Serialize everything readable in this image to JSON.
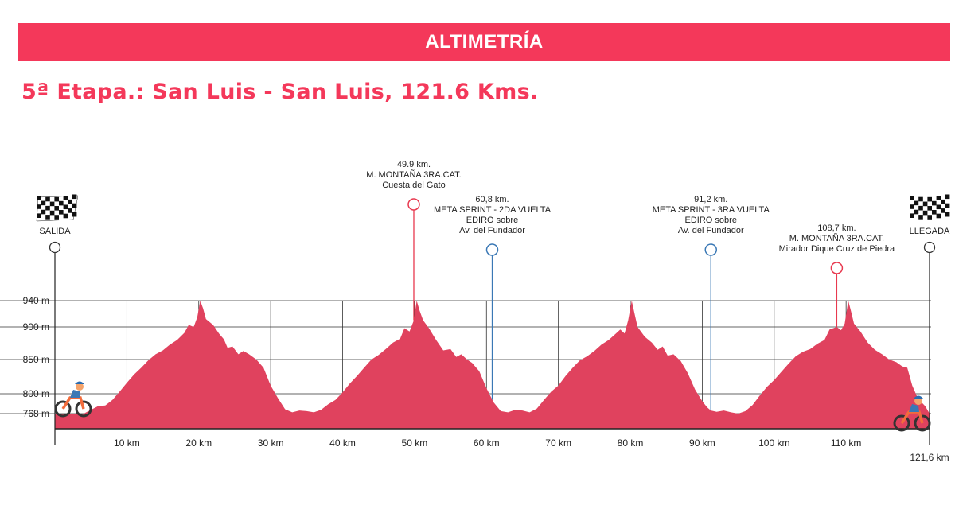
{
  "banner": {
    "title": "ALTIMETRÍA"
  },
  "stage": {
    "title": "5ª Etapa.: San Luis - San Luis, 121.6 Kms."
  },
  "colors": {
    "accent": "#f4385a",
    "profile_fill": "#e0425e",
    "mountain_marker": "#e8394f",
    "sprint_marker": "#3a78b5"
  },
  "start": {
    "label": "SALIDA",
    "icon": "checkered-flag-icon",
    "rider_icon": "cyclist-icon"
  },
  "finish": {
    "label": "LLEGADA",
    "icon": "checkered-flag-icon",
    "rider_icon": "cyclist-icon"
  },
  "chart_data": {
    "type": "area",
    "x_unit": "km",
    "y_unit": "m",
    "xlim": [
      0,
      121.6
    ],
    "ylim": [
      745,
      940
    ],
    "y_ticks": [
      {
        "value": 940,
        "label": "940 m"
      },
      {
        "value": 900,
        "label": "900 m"
      },
      {
        "value": 850,
        "label": "850 m"
      },
      {
        "value": 800,
        "label": "800 m"
      },
      {
        "value": 768,
        "label": "768 m"
      }
    ],
    "x_ticks": [
      {
        "value": 10,
        "label": "10 km"
      },
      {
        "value": 20,
        "label": "20 km"
      },
      {
        "value": 30,
        "label": "30 km"
      },
      {
        "value": 40,
        "label": "40 km"
      },
      {
        "value": 50,
        "label": "50 km"
      },
      {
        "value": 60,
        "label": "60 km"
      },
      {
        "value": 70,
        "label": "70 km"
      },
      {
        "value": 80,
        "label": "80 km"
      },
      {
        "value": 90,
        "label": "90 km"
      },
      {
        "value": 100,
        "label": "100 km"
      },
      {
        "value": 110,
        "label": "110 km"
      }
    ],
    "end_label": "121,6 km",
    "profile": [
      [
        0,
        768
      ],
      [
        2,
        768
      ],
      [
        4,
        768
      ],
      [
        6,
        780
      ],
      [
        7,
        781
      ],
      [
        8,
        790
      ],
      [
        9,
        803
      ],
      [
        10,
        816
      ],
      [
        11,
        828
      ],
      [
        12,
        838
      ],
      [
        13,
        849
      ],
      [
        14,
        858
      ],
      [
        15,
        864
      ],
      [
        16,
        873
      ],
      [
        17,
        880
      ],
      [
        18,
        891
      ],
      [
        18.6,
        903
      ],
      [
        19.3,
        900
      ],
      [
        19.8,
        915
      ],
      [
        20.2,
        940
      ],
      [
        20.6,
        928
      ],
      [
        21,
        912
      ],
      [
        22,
        903
      ],
      [
        22.8,
        890
      ],
      [
        23.5,
        881
      ],
      [
        24,
        868
      ],
      [
        24.7,
        870
      ],
      [
        25.5,
        858
      ],
      [
        26.2,
        863
      ],
      [
        27,
        858
      ],
      [
        28,
        850
      ],
      [
        29,
        838
      ],
      [
        30,
        812
      ],
      [
        31,
        793
      ],
      [
        32,
        775
      ],
      [
        33,
        770
      ],
      [
        34,
        773
      ],
      [
        35,
        772
      ],
      [
        36,
        770
      ],
      [
        37,
        774
      ],
      [
        38,
        783
      ],
      [
        39,
        790
      ],
      [
        40,
        802
      ],
      [
        41,
        815
      ],
      [
        42,
        826
      ],
      [
        43,
        838
      ],
      [
        44,
        850
      ],
      [
        45,
        857
      ],
      [
        46,
        866
      ],
      [
        47,
        876
      ],
      [
        48,
        882
      ],
      [
        48.6,
        898
      ],
      [
        49.3,
        893
      ],
      [
        49.9,
        910
      ],
      [
        50.3,
        940
      ],
      [
        50.7,
        925
      ],
      [
        51.2,
        910
      ],
      [
        52,
        898
      ],
      [
        53,
        880
      ],
      [
        54,
        864
      ],
      [
        55,
        866
      ],
      [
        55.8,
        854
      ],
      [
        56.5,
        858
      ],
      [
        57.3,
        850
      ],
      [
        58,
        845
      ],
      [
        59,
        833
      ],
      [
        60,
        808
      ],
      [
        61,
        786
      ],
      [
        62,
        772
      ],
      [
        63,
        770
      ],
      [
        64,
        774
      ],
      [
        65,
        773
      ],
      [
        66,
        770
      ],
      [
        67,
        776
      ],
      [
        68,
        790
      ],
      [
        69,
        803
      ],
      [
        70,
        812
      ],
      [
        71,
        826
      ],
      [
        72,
        838
      ],
      [
        73,
        849
      ],
      [
        74,
        855
      ],
      [
        75,
        863
      ],
      [
        76,
        873
      ],
      [
        77,
        880
      ],
      [
        78,
        890
      ],
      [
        78.6,
        896
      ],
      [
        79.2,
        890
      ],
      [
        79.7,
        910
      ],
      [
        80.2,
        940
      ],
      [
        80.6,
        920
      ],
      [
        81,
        900
      ],
      [
        82,
        885
      ],
      [
        83,
        876
      ],
      [
        83.8,
        865
      ],
      [
        84.5,
        870
      ],
      [
        85.2,
        856
      ],
      [
        86,
        858
      ],
      [
        87,
        848
      ],
      [
        88,
        830
      ],
      [
        89,
        806
      ],
      [
        90,
        788
      ],
      [
        90.7,
        778
      ],
      [
        91.2,
        773
      ],
      [
        92,
        771
      ],
      [
        93,
        773
      ],
      [
        94,
        770
      ],
      [
        95,
        768
      ],
      [
        96,
        772
      ],
      [
        97,
        782
      ],
      [
        98,
        797
      ],
      [
        99,
        810
      ],
      [
        100,
        820
      ],
      [
        101,
        832
      ],
      [
        102,
        844
      ],
      [
        103,
        855
      ],
      [
        104,
        862
      ],
      [
        105,
        866
      ],
      [
        106,
        874
      ],
      [
        107,
        880
      ],
      [
        107.7,
        896
      ],
      [
        108.7,
        900
      ],
      [
        109.3,
        895
      ],
      [
        109.8,
        905
      ],
      [
        110.3,
        940
      ],
      [
        110.7,
        923
      ],
      [
        111.1,
        905
      ],
      [
        112,
        893
      ],
      [
        113,
        876
      ],
      [
        114,
        865
      ],
      [
        115,
        858
      ],
      [
        116,
        850
      ],
      [
        117,
        846
      ],
      [
        117.8,
        840
      ],
      [
        118.5,
        838
      ],
      [
        119.2,
        812
      ],
      [
        120,
        792
      ],
      [
        121,
        780
      ],
      [
        121.6,
        768
      ]
    ],
    "markers": [
      {
        "km": 49.9,
        "type": "mountain",
        "lines": [
          "49.9 km.",
          "M. MONTAÑA 3RA.CAT.",
          "Cuesta del Gato"
        ]
      },
      {
        "km": 60.8,
        "type": "sprint",
        "lines": [
          "60,8 km.",
          "META SPRINT - 2DA VUELTA",
          "EDIRO sobre",
          "Av. del Fundador"
        ]
      },
      {
        "km": 91.2,
        "type": "sprint",
        "lines": [
          "91,2 km.",
          "META SPRINT - 3RA VUELTA",
          "EDIRO sobre",
          "Av. del Fundador"
        ]
      },
      {
        "km": 108.7,
        "type": "mountain",
        "lines": [
          "108,7 km.",
          "M. MONTAÑA 3RA.CAT.",
          "Mirador Dique Cruz de Piedra"
        ]
      }
    ]
  }
}
